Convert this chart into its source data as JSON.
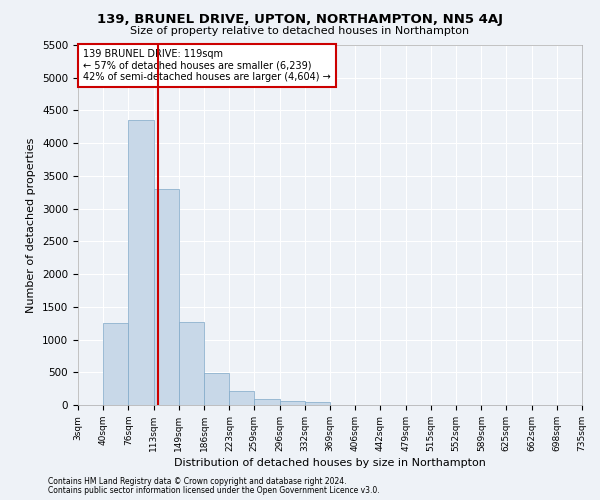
{
  "title": "139, BRUNEL DRIVE, UPTON, NORTHAMPTON, NN5 4AJ",
  "subtitle": "Size of property relative to detached houses in Northampton",
  "xlabel": "Distribution of detached houses by size in Northampton",
  "ylabel": "Number of detached properties",
  "footnote1": "Contains HM Land Registry data © Crown copyright and database right 2024.",
  "footnote2": "Contains public sector information licensed under the Open Government Licence v3.0.",
  "annotation_line1": "139 BRUNEL DRIVE: 119sqm",
  "annotation_line2": "← 57% of detached houses are smaller (6,239)",
  "annotation_line3": "42% of semi-detached houses are larger (4,604) →",
  "bar_values": [
    0,
    1260,
    4350,
    3300,
    1270,
    490,
    215,
    95,
    55,
    50,
    0,
    0,
    0,
    0,
    0,
    0,
    0,
    0,
    0,
    0
  ],
  "bin_labels": [
    "3sqm",
    "40sqm",
    "76sqm",
    "113sqm",
    "149sqm",
    "186sqm",
    "223sqm",
    "259sqm",
    "296sqm",
    "332sqm",
    "369sqm",
    "406sqm",
    "442sqm",
    "479sqm",
    "515sqm",
    "552sqm",
    "589sqm",
    "625sqm",
    "662sqm",
    "698sqm",
    "735sqm"
  ],
  "bin_edges": [
    3,
    40,
    76,
    113,
    149,
    186,
    223,
    259,
    296,
    332,
    369,
    406,
    442,
    479,
    515,
    552,
    589,
    625,
    662,
    698,
    735
  ],
  "property_size": 119,
  "bar_color": "#c8d8e8",
  "bar_edge_color": "#7fa8c8",
  "redline_color": "#cc0000",
  "annotation_box_color": "#cc0000",
  "background_color": "#eef2f7",
  "grid_color": "#ffffff",
  "ylim": [
    0,
    5500
  ],
  "yticks": [
    0,
    500,
    1000,
    1500,
    2000,
    2500,
    3000,
    3500,
    4000,
    4500,
    5000,
    5500
  ]
}
